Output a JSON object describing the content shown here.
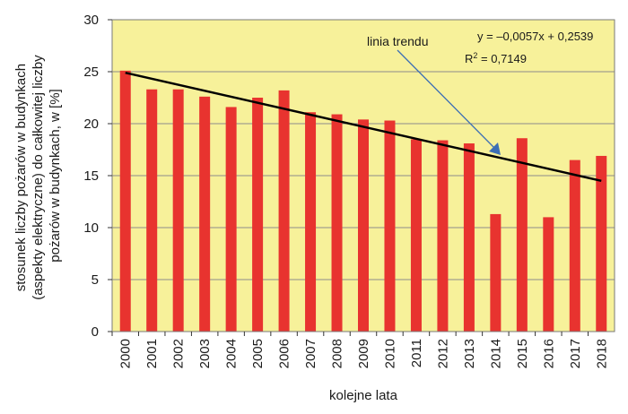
{
  "chart_data": {
    "type": "bar",
    "title": "",
    "xlabel": "kolejne lata",
    "ylabel_lines": [
      "stosunek liczby pożarów w budynkach",
      "(aspekty elektryczne) do całkowitej liczby",
      "pożarów w budynkach, w [%]"
    ],
    "ylim": [
      0,
      30
    ],
    "yticks": [
      0,
      5,
      10,
      15,
      20,
      25,
      30
    ],
    "grid": true,
    "categories": [
      "2000",
      "2001",
      "2002",
      "2003",
      "2004",
      "2005",
      "2006",
      "2007",
      "2008",
      "2009",
      "2010",
      "2011",
      "2012",
      "2013",
      "2014",
      "2015",
      "2016",
      "2017",
      "2018"
    ],
    "values": [
      25.1,
      23.3,
      23.3,
      22.6,
      21.6,
      22.5,
      23.2,
      21.1,
      20.9,
      20.4,
      20.3,
      18.5,
      18.4,
      18.1,
      11.3,
      18.6,
      11.0,
      16.5,
      16.9
    ],
    "trendline": {
      "start": 24.9,
      "end": 14.5
    },
    "annotations": {
      "trend_label": "linia trendu",
      "equation": "y = –0,0057x + 0,2539",
      "r2_prefix": "R",
      "r2_sup": "2",
      "r2_value": " = 0,7149"
    },
    "colors": {
      "plot_bg": "#f7f19a",
      "bar": "#e8332f",
      "grid": "#8c8c8c",
      "trend": "#000000",
      "arrow": "#3d6fb5"
    }
  }
}
